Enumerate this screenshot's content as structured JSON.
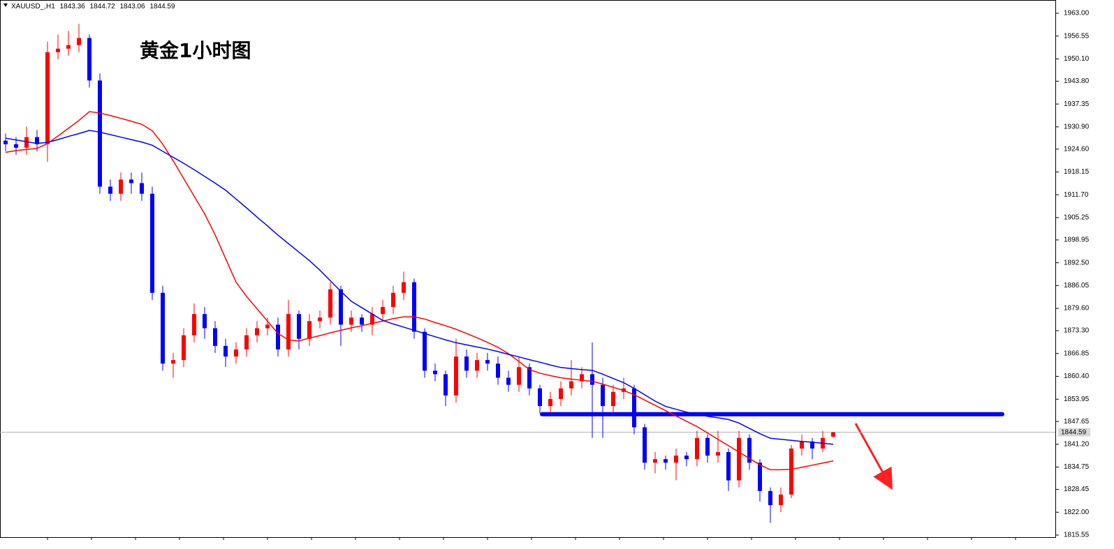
{
  "chart_data": {
    "type": "candlestick",
    "symbol": "XAUUSD_,H1",
    "title": "黄金1小时图",
    "title_color": "#0000cc",
    "up_color": "#ff0000",
    "down_color": "#0000ff",
    "open": [
      1927,
      1926,
      1925,
      1928,
      1926,
      1952,
      1953,
      1954,
      1956,
      1944,
      1914,
      1912,
      1916,
      1915,
      1912,
      1884,
      1864,
      1865,
      1872,
      1878,
      1874,
      1869,
      1866,
      1868,
      1872,
      1874,
      1875,
      1868,
      1878,
      1871,
      1876,
      1877,
      1885,
      1875,
      1877,
      1875,
      1878,
      1880,
      1884,
      1887,
      1873,
      1862,
      1861,
      1855,
      1866,
      1862,
      1865,
      1864,
      1860,
      1858,
      1863,
      1857,
      1852,
      1854,
      1857,
      1859,
      1861,
      1858,
      1852,
      1856,
      1857,
      1846,
      1836,
      1837,
      1836,
      1838,
      1837,
      1843,
      1838,
      1839,
      1831,
      1843,
      1836,
      1828,
      1824,
      1827,
      1840,
      1842,
      1840,
      1843.36
    ],
    "high": [
      1929,
      1928,
      1931,
      1930,
      1955,
      1957,
      1958,
      1960,
      1957,
      1946,
      1916,
      1918,
      1918,
      1918,
      1914,
      1886,
      1867,
      1874,
      1881,
      1880,
      1876,
      1871,
      1870,
      1874,
      1876,
      1877,
      1877,
      1882,
      1879,
      1878,
      1879,
      1887,
      1886,
      1879,
      1878,
      1880,
      1882,
      1886,
      1890,
      1888,
      1874,
      1864,
      1862,
      1871,
      1868,
      1867,
      1867,
      1866,
      1862,
      1866,
      1864,
      1858,
      1856,
      1859,
      1865,
      1863,
      1870,
      1860,
      1858,
      1860,
      1858,
      1847,
      1839,
      1838,
      1840,
      1839,
      1845,
      1844,
      1845,
      1840,
      1845,
      1844,
      1837,
      1829,
      1829,
      1841,
      1844,
      1843,
      1845,
      1844.72
    ],
    "low": [
      1924,
      1923,
      1923,
      1924,
      1921,
      1950,
      1951,
      1952,
      1942,
      1912,
      1910,
      1910,
      1912,
      1910,
      1882,
      1862,
      1860,
      1863,
      1870,
      1871,
      1867,
      1863,
      1864,
      1866,
      1870,
      1872,
      1866,
      1866,
      1868,
      1869,
      1874,
      1875,
      1869,
      1873,
      1873,
      1872,
      1876,
      1878,
      1882,
      1871,
      1860,
      1859,
      1852,
      1853,
      1860,
      1860,
      1862,
      1858,
      1856,
      1856,
      1855,
      1850,
      1850,
      1852,
      1855,
      1857,
      1843,
      1843,
      1850,
      1854,
      1844,
      1834,
      1833,
      1834,
      1831,
      1835,
      1835,
      1836,
      1836,
      1828,
      1829,
      1834,
      1825,
      1819,
      1822,
      1826,
      1838,
      1837,
      1839,
      1843.06
    ],
    "close": [
      1926,
      1925,
      1928,
      1926,
      1952,
      1953,
      1954,
      1956,
      1944,
      1914,
      1912,
      1916,
      1915,
      1912,
      1884,
      1864,
      1865,
      1872,
      1878,
      1874,
      1869,
      1866,
      1868,
      1872,
      1874,
      1875,
      1868,
      1878,
      1871,
      1876,
      1877,
      1885,
      1875,
      1877,
      1875,
      1878,
      1880,
      1884,
      1887,
      1873,
      1862,
      1861,
      1855,
      1866,
      1862,
      1865,
      1864,
      1860,
      1858,
      1863,
      1857,
      1852,
      1854,
      1857,
      1859,
      1861,
      1858,
      1852,
      1856,
      1857,
      1846,
      1836,
      1837,
      1836,
      1838,
      1837,
      1843,
      1838,
      1839,
      1831,
      1843,
      1836,
      1828,
      1824,
      1827,
      1840,
      1842,
      1840,
      1843,
      1844.59
    ],
    "series": [
      {
        "color": "#ff0000",
        "values": [
          1923.7,
          1924.2,
          1924.5,
          1924.8,
          1926.2,
          1928.3,
          1930.5,
          1932.7,
          1935.2,
          1934.8,
          1934.1,
          1933.3,
          1932.5,
          1931.6,
          1929.8,
          1926,
          1921.3,
          1916.3,
          1911.3,
          1906.3,
          1900.4,
          1893.7,
          1887,
          1883,
          1879.5,
          1876,
          1872.5,
          1870.7,
          1870.4,
          1871.2,
          1871.9,
          1872.7,
          1873.4,
          1874.1,
          1874.7,
          1875.4,
          1876,
          1876.7,
          1877.2,
          1877.2,
          1876.6,
          1875.6,
          1874.7,
          1873.7,
          1872.5,
          1871.3,
          1870,
          1868.6,
          1866.8,
          1864.6,
          1862.3,
          1861.3,
          1860.6,
          1860,
          1859.6,
          1859.3,
          1859,
          1858.2,
          1857.3,
          1856.4,
          1855.2,
          1853.7,
          1852.2,
          1850.7,
          1849.2,
          1847.7,
          1846.2,
          1844.4,
          1842.6,
          1840.8,
          1839,
          1837.2,
          1835.4,
          1834,
          1834,
          1834.1,
          1834.7,
          1835.3,
          1835.9,
          1836.5
        ]
      },
      {
        "color": "#0000ff",
        "values": [
          1927.7,
          1927.2,
          1926.7,
          1926.2,
          1926.5,
          1927.3,
          1928.2,
          1929,
          1929.9,
          1929.4,
          1928.7,
          1928,
          1927.3,
          1926.6,
          1925.7,
          1924,
          1922.3,
          1920.6,
          1918.8,
          1916.9,
          1915,
          1913,
          1910.5,
          1908,
          1905.4,
          1902.9,
          1900.3,
          1897.9,
          1895.5,
          1893.1,
          1890.4,
          1887.4,
          1884.4,
          1881.6,
          1879.8,
          1878,
          1876.2,
          1875.2,
          1874.3,
          1873.4,
          1872.5,
          1871.6,
          1870.7,
          1869.9,
          1869.3,
          1868.7,
          1868.1,
          1867.4,
          1866.6,
          1865.9,
          1865.1,
          1864.4,
          1863.6,
          1862.9,
          1862.6,
          1862.3,
          1862.1,
          1861,
          1859.8,
          1858.6,
          1857,
          1855.2,
          1853.4,
          1851.9,
          1851.1,
          1850.3,
          1849.6,
          1849.1,
          1848.7,
          1848.2,
          1847.2,
          1845.7,
          1844.2,
          1842.9,
          1842.6,
          1842.3,
          1842,
          1841.8,
          1841.5,
          1841.2
        ]
      }
    ],
    "level": {
      "value": 1849.7,
      "color": "#0000ff"
    },
    "ylim": [
      1814.96,
      1966.35
    ],
    "yticks": [
      {
        "value": 1963.0,
        "label": "1963.00"
      },
      {
        "value": 1956.55,
        "label": "1956.55"
      },
      {
        "value": 1950.1,
        "label": "1950.10"
      },
      {
        "value": 1943.8,
        "label": "1943.80"
      },
      {
        "value": 1937.35,
        "label": "1937.35"
      },
      {
        "value": 1930.9,
        "label": "1930.90"
      },
      {
        "value": 1924.6,
        "label": "1924.60"
      },
      {
        "value": 1918.15,
        "label": "1918.15"
      },
      {
        "value": 1911.7,
        "label": "1911.70"
      },
      {
        "value": 1905.25,
        "label": "1905.25"
      },
      {
        "value": 1898.95,
        "label": "1898.95"
      },
      {
        "value": 1892.5,
        "label": "1892.50"
      },
      {
        "value": 1886.05,
        "label": "1886.05"
      },
      {
        "value": 1879.6,
        "label": "1879.60"
      },
      {
        "value": 1873.3,
        "label": "1873.30"
      },
      {
        "value": 1866.85,
        "label": "1866.85"
      },
      {
        "value": 1860.4,
        "label": "1860.40"
      },
      {
        "value": 1853.95,
        "label": "1853.95"
      },
      {
        "value": 1847.65,
        "label": "1847.65"
      },
      {
        "value": 1841.2,
        "label": "1841.20"
      },
      {
        "value": 1834.75,
        "label": "1834.75"
      },
      {
        "value": 1828.45,
        "label": "1828.45"
      },
      {
        "value": 1822.0,
        "label": "1822.00"
      },
      {
        "value": 1815.55,
        "label": "1815.55"
      }
    ]
  }
}
